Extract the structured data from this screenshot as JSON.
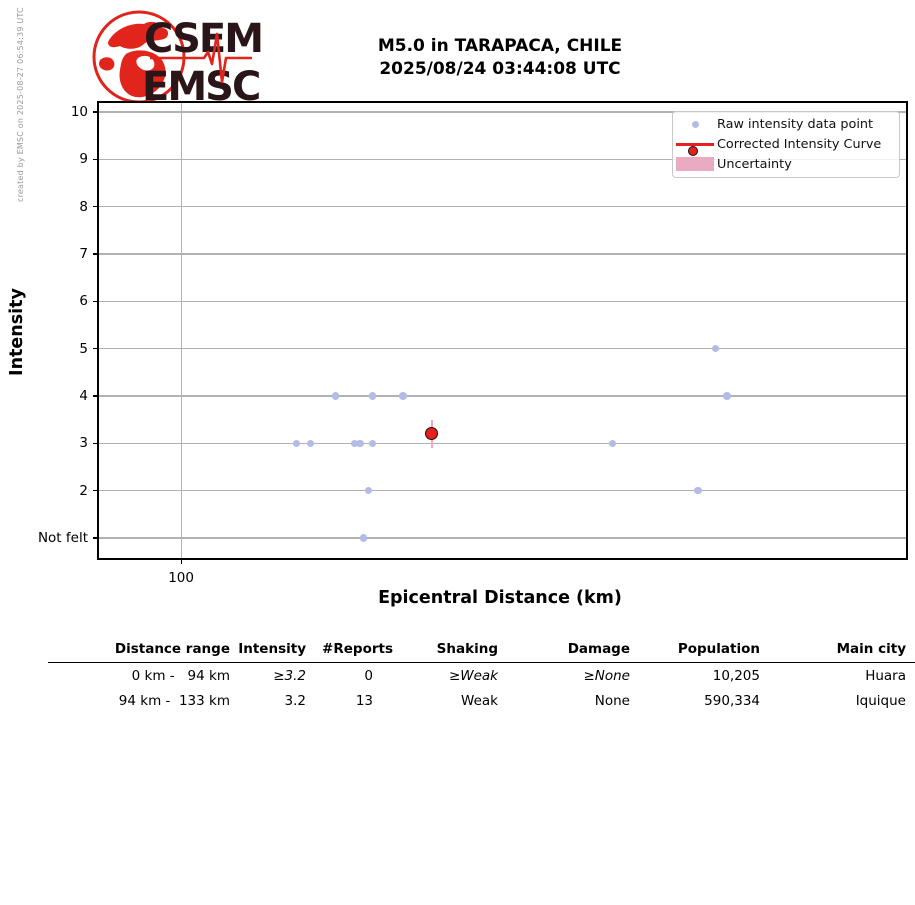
{
  "branding": {
    "logo_line1": "CSEM",
    "logo_line2": "EMSC",
    "credit": "created by EMSC on 2025-08-27 06:54:39 UTC"
  },
  "header": {
    "title_line1": "M5.0 in TARAPACA, CHILE",
    "title_line2": "2025/08/24 03:44:08 UTC"
  },
  "chart_data": {
    "type": "scatter",
    "title": "M5.0 in TARAPACA, CHILE 2025/08/24 03:44:08 UTC",
    "xlabel": "Epicentral Distance (km)",
    "ylabel": "Intensity",
    "x_scale": "log",
    "grid": true,
    "legend_position": "top-right",
    "x_range_km": [
      95.7,
      146.2
    ],
    "y_range": [
      0.535,
      10.232
    ],
    "x_ticks": [
      {
        "value": 100,
        "label": "100"
      }
    ],
    "y_ticks": [
      {
        "value": 1,
        "label": "Not felt"
      },
      {
        "value": 2,
        "label": "2"
      },
      {
        "value": 3,
        "label": "3"
      },
      {
        "value": 4,
        "label": "4"
      },
      {
        "value": 5,
        "label": "5"
      },
      {
        "value": 6,
        "label": "6"
      },
      {
        "value": 7,
        "label": "7"
      },
      {
        "value": 8,
        "label": "8"
      },
      {
        "value": 9,
        "label": "9"
      },
      {
        "value": 10,
        "label": "10"
      }
    ],
    "colors": {
      "raw": "#b2bce6",
      "corrected": "#e62020",
      "corrected_edge": "#111111",
      "uncertainty_line": "#f4a7b9",
      "uncertainty_fill": "#e9aac2"
    },
    "series": [
      {
        "name": "Raw intensity data point",
        "type": "scatter",
        "marker": "dot",
        "color": "#b2bce6",
        "points": [
          {
            "km": 106.2,
            "intensity": 3
          },
          {
            "km": 107.0,
            "intensity": 3
          },
          {
            "km": 108.4,
            "intensity": 4
          },
          {
            "km": 109.5,
            "intensity": 3
          },
          {
            "km": 109.8,
            "intensity": 3
          },
          {
            "km": 110.0,
            "intensity": 1
          },
          {
            "km": 110.3,
            "intensity": 2
          },
          {
            "km": 110.5,
            "intensity": 3
          },
          {
            "km": 110.5,
            "intensity": 4
          },
          {
            "km": 112.3,
            "intensity": 4
          },
          {
            "km": 125.3,
            "intensity": 3
          },
          {
            "km": 131.0,
            "intensity": 2
          },
          {
            "km": 132.2,
            "intensity": 5
          },
          {
            "km": 133.0,
            "intensity": 4
          }
        ]
      },
      {
        "name": "Corrected Intensity Curve",
        "type": "line",
        "marker": "circle",
        "color": "#e62020",
        "points": [
          {
            "km": 114.0,
            "intensity": 3.2,
            "uncertainty": 0.3
          }
        ]
      },
      {
        "name": "Uncertainty",
        "type": "band",
        "color": "#e9aac2"
      }
    ]
  },
  "table": {
    "headers": [
      "Distance range",
      "Intensity",
      "#Reports",
      "Shaking",
      "Damage",
      "Population",
      "Main city"
    ],
    "rows": [
      [
        "0 km -   94 km",
        "≥3.2",
        "0",
        "≥Weak",
        "≥None",
        "10,205",
        "Huara"
      ],
      [
        "94 km -  133 km",
        "3.2",
        "13",
        "Weak",
        "None",
        "590,334",
        "Iquique"
      ]
    ]
  }
}
